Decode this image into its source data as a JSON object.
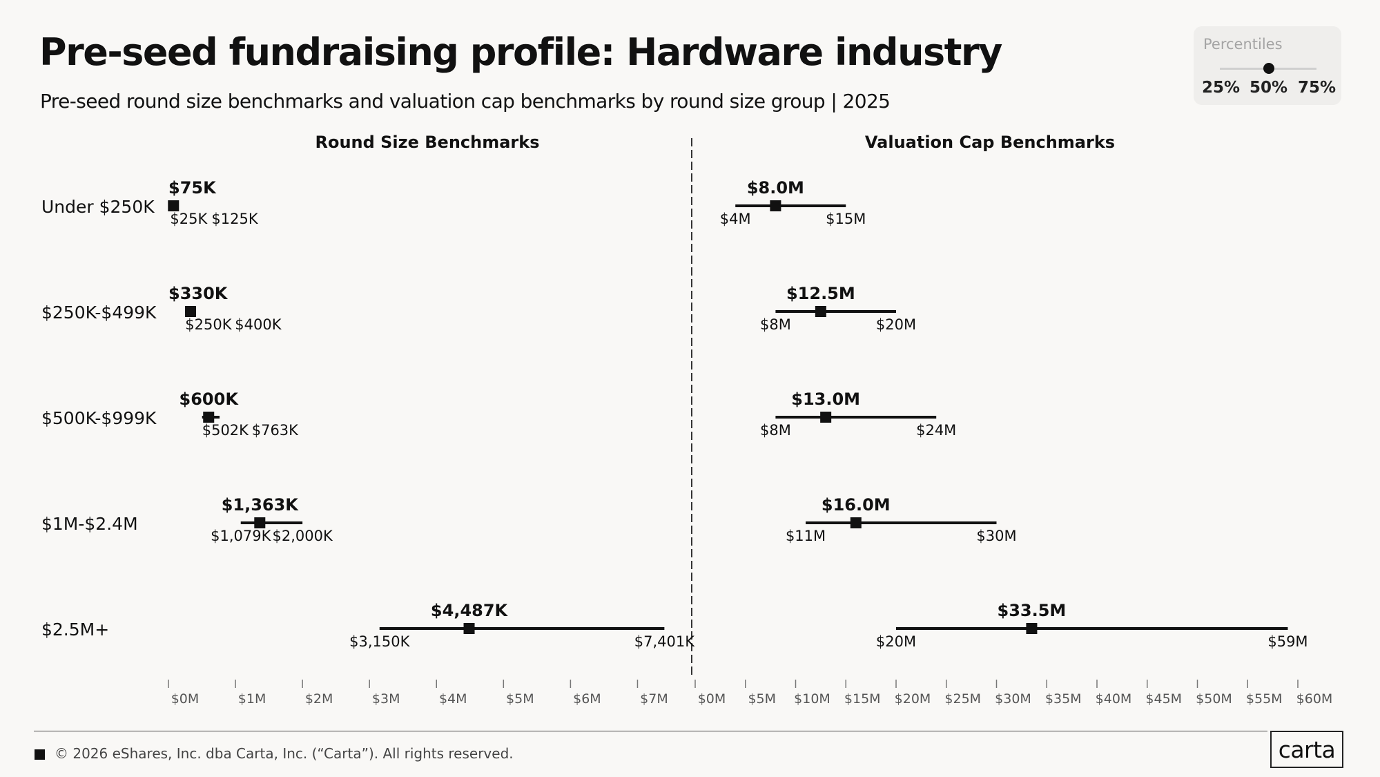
{
  "title": "Pre-seed fundraising profile: Hardware industry",
  "subtitle": "Pre-seed round size benchmarks and valuation cap benchmarks by round size group | 2025",
  "legend": {
    "title": "Percentiles",
    "labels": [
      "25%",
      "50%",
      "75%"
    ]
  },
  "footer": {
    "copyright": "© 2026 eShares, Inc. dba Carta, Inc. (“Carta”). All rights reserved.",
    "logo": "carta"
  },
  "chart_data": [
    {
      "type": "dot-range",
      "title": "Round Size Benchmarks",
      "unit": "$M",
      "xlim": [
        0,
        7.5
      ],
      "ticks": [
        0,
        1,
        2,
        3,
        4,
        5,
        6,
        7
      ],
      "tick_labels": [
        "$0M",
        "$1M",
        "$2M",
        "$3M",
        "$4M",
        "$5M",
        "$6M",
        "$7M"
      ],
      "categories": [
        "Under $250K",
        "$250K-$499K",
        "$500K-$999K",
        "$1M-$2.4M",
        "$2.5M+"
      ],
      "p25": [
        0.025,
        0.25,
        0.502,
        1.079,
        3.15
      ],
      "p50": [
        0.075,
        0.33,
        0.6,
        1.363,
        4.487
      ],
      "p75": [
        0.125,
        0.4,
        0.763,
        2.0,
        7.401
      ],
      "p25_labels": [
        "$25K",
        "$250K",
        "$502K",
        "$1,079K",
        "$3,150K"
      ],
      "p50_labels": [
        "$75K",
        "$330K",
        "$600K",
        "$1,363K",
        "$4,487K"
      ],
      "p75_labels": [
        "$125K",
        "$400K",
        "$763K",
        "$2,000K",
        "$7,401K"
      ]
    },
    {
      "type": "dot-range",
      "title": "Valuation Cap Benchmarks",
      "unit": "$M",
      "xlim": [
        0,
        60
      ],
      "ticks": [
        0,
        5,
        10,
        15,
        20,
        25,
        30,
        35,
        40,
        45,
        50,
        55,
        60
      ],
      "tick_labels": [
        "$0M",
        "$5M",
        "$10M",
        "$15M",
        "$20M",
        "$25M",
        "$30M",
        "$35M",
        "$40M",
        "$45M",
        "$50M",
        "$55M",
        "$60M"
      ],
      "categories": [
        "Under $250K",
        "$250K-$499K",
        "$500K-$999K",
        "$1M-$2.4M",
        "$2.5M+"
      ],
      "p25": [
        4,
        8,
        8,
        11,
        20
      ],
      "p50": [
        8.0,
        12.5,
        13.0,
        16.0,
        33.5
      ],
      "p75": [
        15,
        20,
        24,
        30,
        59
      ],
      "p25_labels": [
        "$4M",
        "$8M",
        "$8M",
        "$11M",
        "$20M"
      ],
      "p50_labels": [
        "$8.0M",
        "$12.5M",
        "$13.0M",
        "$16.0M",
        "$33.5M"
      ],
      "p75_labels": [
        "$15M",
        "$20M",
        "$24M",
        "$30M",
        "$59M"
      ]
    }
  ]
}
